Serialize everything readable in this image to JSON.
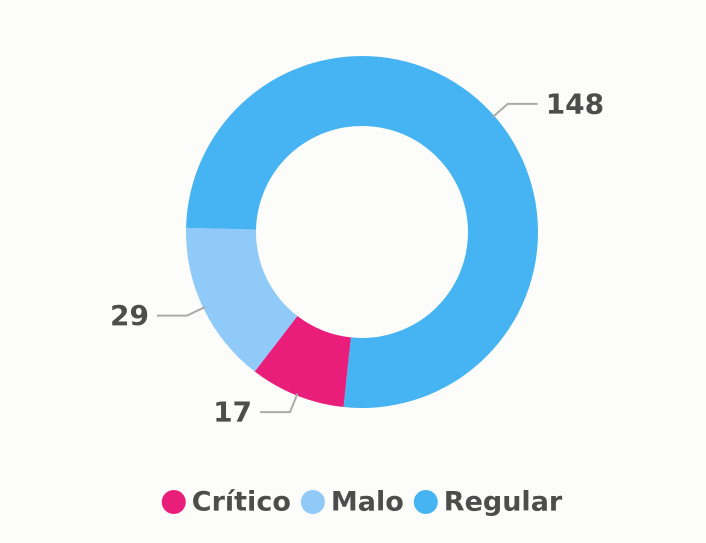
{
  "chart_data": {
    "type": "pie",
    "variant": "donut",
    "categories": [
      "Crítico",
      "Malo",
      "Regular"
    ],
    "values": [
      17,
      29,
      148
    ],
    "colors": [
      "#E91E7A",
      "#90CAF9",
      "#46B4F2"
    ],
    "data_labels": [
      "17",
      "29",
      "148"
    ],
    "legend": {
      "position": "bottom",
      "entries": [
        "Crítico",
        "Malo",
        "Regular"
      ]
    },
    "background": "#FCFCFA"
  }
}
